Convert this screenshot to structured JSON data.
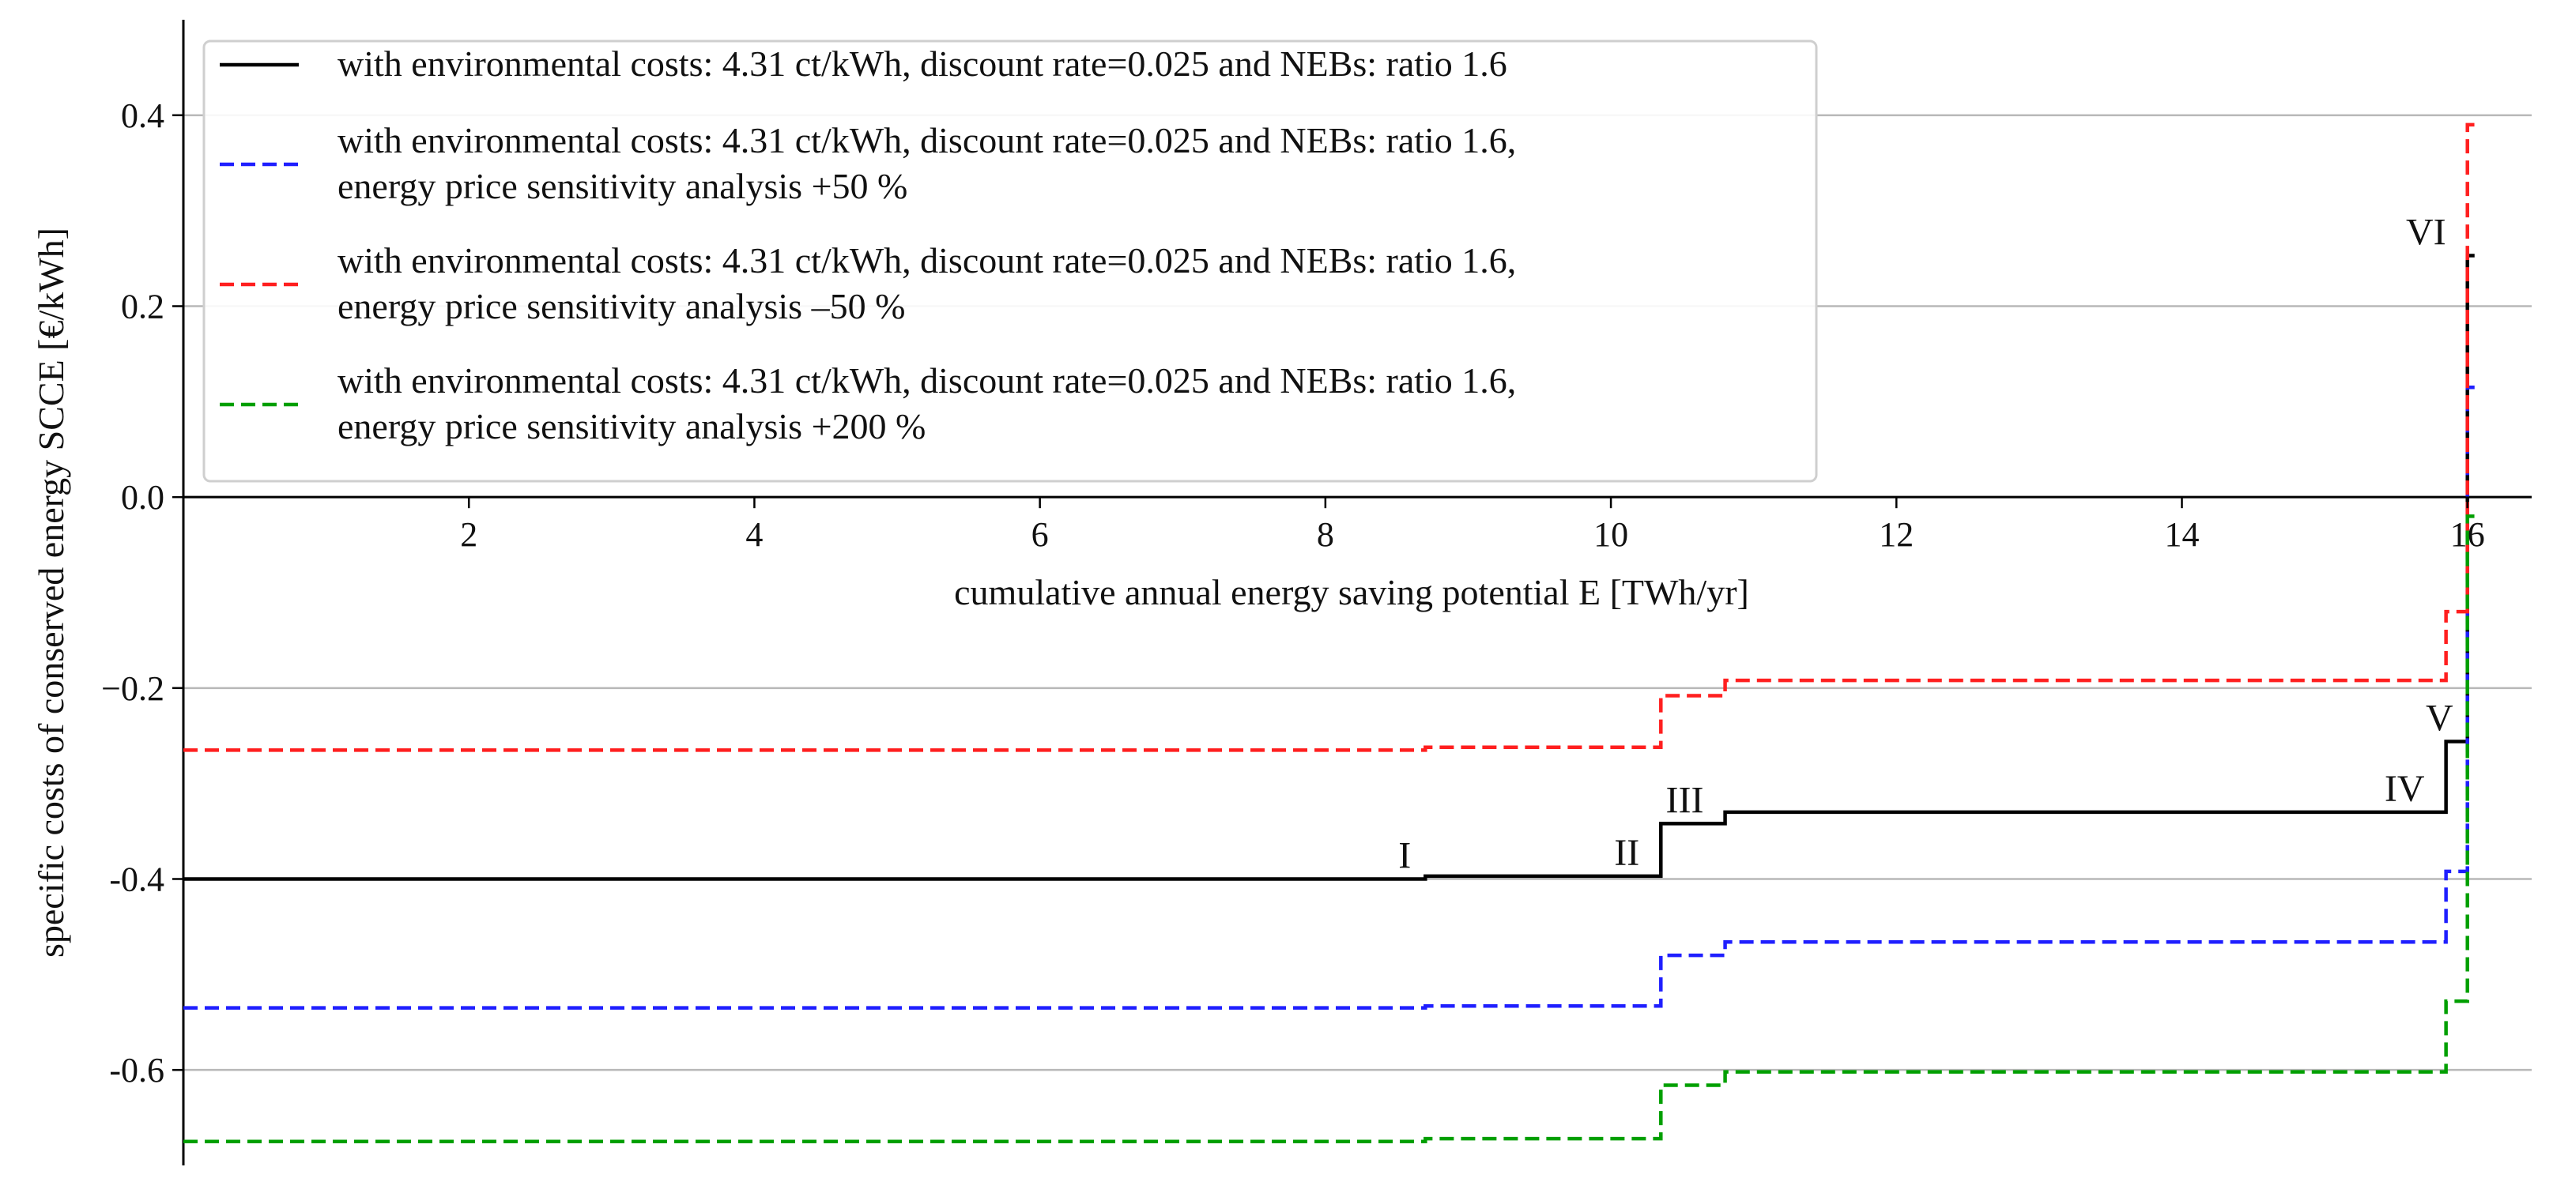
{
  "chart_data": {
    "type": "line",
    "step": true,
    "title": "",
    "xlabel": "cumulative annual energy saving potential E [TWh/yr]",
    "ylabel": "specific costs of conserved energy SCCE [€/kWh]",
    "xlim": [
      0,
      16.45
    ],
    "ylim": [
      -0.7,
      0.5
    ],
    "xticks": [
      2,
      4,
      6,
      8,
      10,
      12,
      14,
      16
    ],
    "xtick_labels": [
      "2",
      "4",
      "6",
      "8",
      "10",
      "12",
      "14",
      "16"
    ],
    "yticks": [
      0.4,
      0.2,
      0.0,
      -0.2,
      -0.4,
      -0.6
    ],
    "ytick_labels": [
      "0.4",
      "0.2",
      "0.0",
      "−0.2",
      "-0.4",
      "-0.6"
    ],
    "grid": "horizontal",
    "legend_position": "top-left",
    "series": [
      {
        "name": "with environmental costs: 4.31 ct/kWh, discount rate=0.025 and NEBs: ratio 1.6",
        "color": "#000000",
        "style": "solid",
        "x": [
          0,
          8.7,
          10.35,
          10.8,
          15.85,
          16.0,
          16.05
        ],
        "y": [
          -0.4,
          -0.397,
          -0.342,
          -0.33,
          -0.256,
          0.253,
          0.253
        ]
      },
      {
        "name": "with environmental costs: 4.31 ct/kWh, discount rate=0.025 and NEBs: ratio 1.6,\nenergy price sensitivity analysis +50 %",
        "color": "#1f1fff",
        "style": "dashed",
        "x": [
          0,
          8.7,
          10.35,
          10.8,
          15.85,
          16.0,
          16.05
        ],
        "y": [
          -0.535,
          -0.533,
          -0.48,
          -0.466,
          -0.392,
          0.115,
          0.115
        ]
      },
      {
        "name": "with environmental costs: 4.31 ct/kWh, discount rate=0.025 and NEBs: ratio 1.6,\nenergy price sensitivity analysis –50 %",
        "color": "#ff1f1f",
        "style": "dashed",
        "x": [
          0,
          8.7,
          10.35,
          10.8,
          15.85,
          16.0,
          16.05
        ],
        "y": [
          -0.265,
          -0.262,
          -0.208,
          -0.192,
          -0.12,
          0.39,
          0.39
        ]
      },
      {
        "name": "with environmental costs: 4.31 ct/kWh, discount rate=0.025 and NEBs: ratio 1.6,\nenergy price sensitivity analysis +200 %",
        "color": "#009f00",
        "style": "dashed",
        "x": [
          0,
          8.7,
          10.35,
          10.8,
          15.85,
          16.0,
          16.05
        ],
        "y": [
          -0.675,
          -0.672,
          -0.616,
          -0.602,
          -0.528,
          -0.02,
          -0.02
        ]
      }
    ],
    "annotations": [
      {
        "text": "I",
        "x": 8.6,
        "y": -0.4
      },
      {
        "text": "II",
        "x": 10.2,
        "y": -0.397
      },
      {
        "text": "III",
        "x": 10.65,
        "y": -0.342
      },
      {
        "text": "IV",
        "x": 15.7,
        "y": -0.33
      },
      {
        "text": "V",
        "x": 15.9,
        "y": -0.256
      },
      {
        "text": "VI",
        "x": 15.85,
        "y": 0.253
      }
    ]
  }
}
